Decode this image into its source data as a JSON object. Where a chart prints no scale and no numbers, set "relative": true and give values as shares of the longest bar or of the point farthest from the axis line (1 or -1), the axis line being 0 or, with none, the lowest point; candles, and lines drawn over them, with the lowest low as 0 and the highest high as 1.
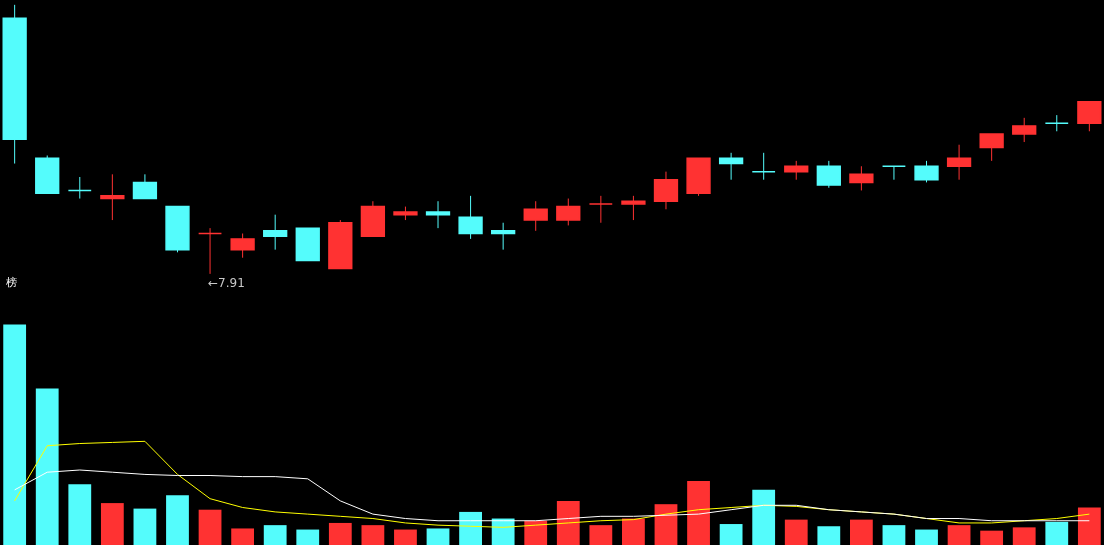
{
  "chart_data": [
    {
      "type": "candlestick",
      "relative": true,
      "categories": [
        null,
        null,
        null,
        null,
        null,
        null,
        null,
        null,
        null,
        null,
        null,
        null,
        null,
        null,
        null,
        null,
        null,
        null,
        null,
        null,
        null,
        null,
        null,
        null,
        null,
        null,
        null,
        null,
        null,
        null,
        null,
        null,
        null,
        null
      ],
      "ohlc": [
        [
          0.95,
          1.0,
          0.41,
          0.5
        ],
        [
          0.43,
          0.44,
          0.3,
          0.3
        ],
        [
          0.31,
          0.36,
          0.28,
          0.31
        ],
        [
          0.28,
          0.37,
          0.2,
          0.29
        ],
        [
          0.34,
          0.37,
          0.28,
          0.28
        ],
        [
          0.25,
          0.25,
          0.08,
          0.09
        ],
        [
          0.15,
          0.17,
          0.0,
          0.15
        ],
        [
          0.09,
          0.15,
          0.06,
          0.13
        ],
        [
          0.16,
          0.22,
          0.09,
          0.14
        ],
        [
          0.17,
          0.17,
          0.05,
          0.05
        ],
        [
          0.02,
          0.2,
          0.02,
          0.19
        ],
        [
          0.14,
          0.27,
          0.14,
          0.25
        ],
        [
          0.22,
          0.25,
          0.2,
          0.23
        ],
        [
          0.23,
          0.27,
          0.17,
          0.22
        ],
        [
          0.21,
          0.29,
          0.13,
          0.15
        ],
        [
          0.16,
          0.19,
          0.09,
          0.15
        ],
        [
          0.2,
          0.27,
          0.16,
          0.24
        ],
        [
          0.2,
          0.28,
          0.18,
          0.25
        ],
        [
          0.26,
          0.29,
          0.19,
          0.26
        ],
        [
          0.26,
          0.29,
          0.2,
          0.27
        ],
        [
          0.27,
          0.38,
          0.24,
          0.35
        ],
        [
          0.3,
          0.43,
          0.29,
          0.43
        ],
        [
          0.43,
          0.45,
          0.35,
          0.41
        ],
        [
          0.38,
          0.45,
          0.35,
          0.38
        ],
        [
          0.38,
          0.42,
          0.35,
          0.4
        ],
        [
          0.4,
          0.42,
          0.32,
          0.33
        ],
        [
          0.34,
          0.4,
          0.31,
          0.37
        ],
        [
          0.4,
          0.4,
          0.35,
          0.4
        ],
        [
          0.4,
          0.42,
          0.34,
          0.35
        ],
        [
          0.4,
          0.48,
          0.35,
          0.43
        ],
        [
          0.47,
          0.52,
          0.42,
          0.52
        ],
        [
          0.52,
          0.58,
          0.49,
          0.55
        ],
        [
          0.56,
          0.59,
          0.53,
          0.56
        ],
        [
          0.56,
          0.64,
          0.53,
          0.64
        ]
      ],
      "colors": [
        "#54fcfc",
        "#54fcfc",
        "#54fcfc",
        "#ff3232",
        "#54fcfc",
        "#54fcfc",
        "#ff3232",
        "#ff3232",
        "#54fcfc",
        "#54fcfc",
        "#ff3232",
        "#ff3232",
        "#ff3232",
        "#54fcfc",
        "#54fcfc",
        "#54fcfc",
        "#ff3232",
        "#ff3232",
        "#ff3232",
        "#ff3232",
        "#ff3232",
        "#ff3232",
        "#54fcfc",
        "#54fcfc",
        "#ff3232",
        "#54fcfc",
        "#ff3232",
        "#54fcfc",
        "#54fcfc",
        "#ff3232",
        "#ff3232",
        "#ff3232",
        "#54fcfc",
        "#ff3232"
      ],
      "annotations": [
        "←7.91",
        "榜"
      ]
    },
    {
      "type": "bar",
      "relative": true,
      "categories": [
        null,
        null,
        null,
        null,
        null,
        null,
        null,
        null,
        null,
        null,
        null,
        null,
        null,
        null,
        null,
        null,
        null,
        null,
        null,
        null,
        null,
        null,
        null,
        null,
        null,
        null,
        null,
        null,
        null,
        null,
        null,
        null,
        null,
        null
      ],
      "series": [
        {
          "type": "bar",
          "values": [
            1.0,
            0.71,
            0.275,
            0.19,
            0.165,
            0.225,
            0.16,
            0.075,
            0.09,
            0.07,
            0.1,
            0.09,
            0.07,
            0.075,
            0.15,
            0.12,
            0.11,
            0.2,
            0.09,
            0.12,
            0.185,
            0.29,
            0.095,
            0.25,
            0.115,
            0.085,
            0.115,
            0.09,
            0.07,
            0.09,
            0.065,
            0.08,
            0.105,
            0.17
          ],
          "colors": [
            "#54fcfc",
            "#54fcfc",
            "#54fcfc",
            "#ff3232",
            "#54fcfc",
            "#54fcfc",
            "#ff3232",
            "#ff3232",
            "#54fcfc",
            "#54fcfc",
            "#ff3232",
            "#ff3232",
            "#ff3232",
            "#54fcfc",
            "#54fcfc",
            "#54fcfc",
            "#ff3232",
            "#ff3232",
            "#ff3232",
            "#ff3232",
            "#ff3232",
            "#ff3232",
            "#54fcfc",
            "#54fcfc",
            "#ff3232",
            "#54fcfc",
            "#ff3232",
            "#54fcfc",
            "#54fcfc",
            "#ff3232",
            "#ff3232",
            "#ff3232",
            "#54fcfc",
            "#ff3232"
          ]
        },
        {
          "type": "line",
          "color": "#ffff00",
          "values": [
            0.2,
            0.45,
            0.46,
            0.465,
            0.47,
            0.32,
            0.21,
            0.17,
            0.15,
            0.14,
            0.13,
            0.12,
            0.1,
            0.09,
            0.085,
            0.08,
            0.09,
            0.1,
            0.11,
            0.115,
            0.14,
            0.16,
            0.17,
            0.18,
            0.175,
            0.16,
            0.15,
            0.14,
            0.12,
            0.1,
            0.1,
            0.11,
            0.12,
            0.14
          ]
        },
        {
          "type": "line",
          "color": "#ffffff",
          "values": [
            0.25,
            0.33,
            0.34,
            0.33,
            0.32,
            0.315,
            0.315,
            0.31,
            0.31,
            0.3,
            0.2,
            0.14,
            0.12,
            0.11,
            0.11,
            0.11,
            0.11,
            0.12,
            0.13,
            0.13,
            0.135,
            0.14,
            0.16,
            0.18,
            0.18,
            0.16,
            0.15,
            0.14,
            0.12,
            0.12,
            0.11,
            0.11,
            0.11,
            0.11
          ]
        }
      ]
    }
  ]
}
